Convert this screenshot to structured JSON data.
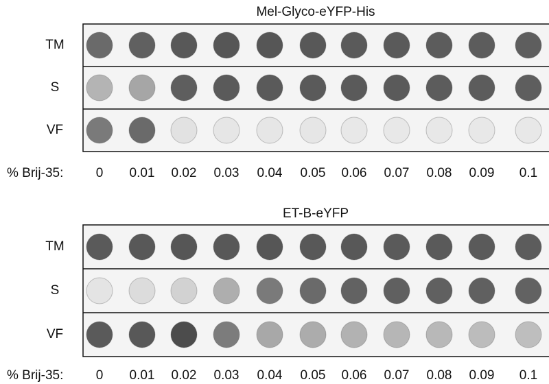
{
  "panels": [
    {
      "title": "Mel-Glyco-eYFP-His",
      "rows": [
        {
          "label": "TM",
          "dot_colors": [
            "#6a6a6a",
            "#606060",
            "#585858",
            "#565656",
            "#565656",
            "#585858",
            "#5a5a5a",
            "#5a5a5a",
            "#5c5c5c",
            "#5c5c5c",
            "#5e5e5e"
          ]
        },
        {
          "label": "S",
          "dot_colors": [
            "#b4b4b4",
            "#a6a6a6",
            "#5e5e5e",
            "#5a5a5a",
            "#5a5a5a",
            "#5a5a5a",
            "#5a5a5a",
            "#5a5a5a",
            "#5c5c5c",
            "#5c5c5c",
            "#5e5e5e"
          ]
        },
        {
          "label": "VF",
          "dot_colors": [
            "#7a7a7a",
            "#6a6a6a",
            "#e2e2e2",
            "#e6e6e6",
            "#e6e6e6",
            "#e6e6e6",
            "#e8e8e8",
            "#e8e8e8",
            "#e8e8e8",
            "#e8e8e8",
            "#e8e8e8"
          ]
        }
      ],
      "x_label": "% Brij-35:",
      "x_values": [
        0,
        0.01,
        0.02,
        0.03,
        0.04,
        0.05,
        0.06,
        0.07,
        0.08,
        0.09,
        0.1
      ]
    },
    {
      "title": "ET-B-eYFP",
      "rows": [
        {
          "label": "TM",
          "dot_colors": [
            "#5a5a5a",
            "#585858",
            "#565656",
            "#585858",
            "#565656",
            "#585858",
            "#585858",
            "#5a5a5a",
            "#5a5a5a",
            "#5a5a5a",
            "#5c5c5c"
          ]
        },
        {
          "label": "S",
          "dot_colors": [
            "#e4e4e4",
            "#dcdcdc",
            "#d2d2d2",
            "#aeaeae",
            "#7a7a7a",
            "#6a6a6a",
            "#626262",
            "#606060",
            "#606060",
            "#606060",
            "#626262"
          ]
        },
        {
          "label": "VF",
          "dot_colors": [
            "#5a5a5a",
            "#585858",
            "#4c4c4c",
            "#7c7c7c",
            "#a8a8a8",
            "#acacac",
            "#b2b2b2",
            "#b6b6b6",
            "#b8b8b8",
            "#bcbcbc",
            "#bebebe"
          ]
        }
      ],
      "x_label": "% Brij-35:",
      "x_values": [
        0,
        0.01,
        0.02,
        0.03,
        0.04,
        0.05,
        0.06,
        0.07,
        0.08,
        0.09,
        0.1
      ]
    }
  ]
}
